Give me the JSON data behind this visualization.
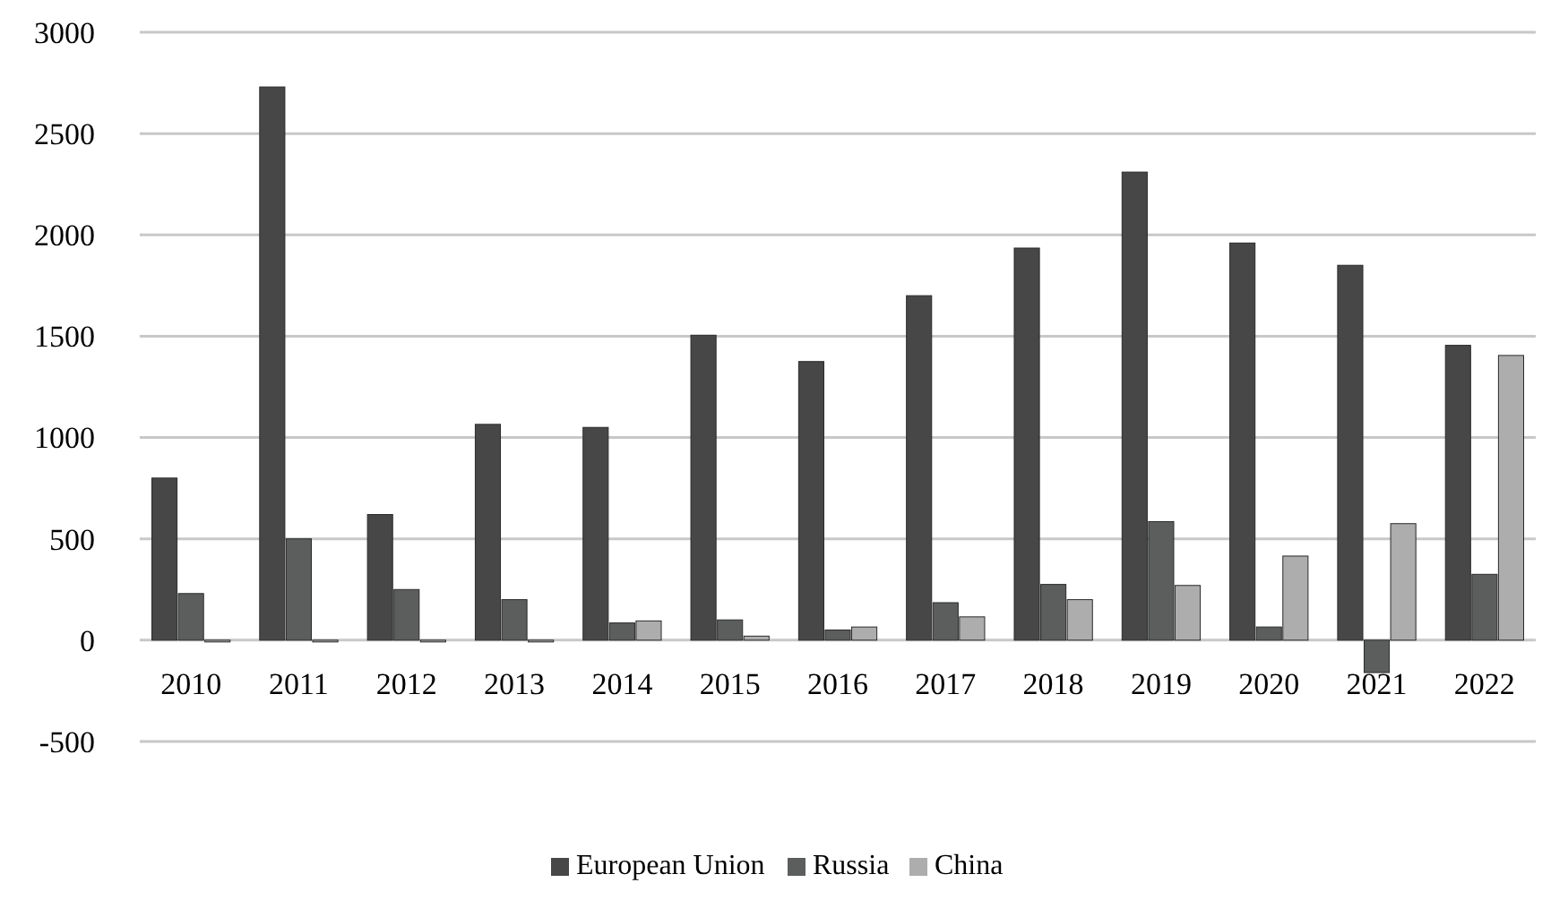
{
  "chart_data": {
    "type": "bar",
    "categories": [
      "2010",
      "2011",
      "2012",
      "2013",
      "2014",
      "2015",
      "2016",
      "2017",
      "2018",
      "2019",
      "2020",
      "2021",
      "2022"
    ],
    "series": [
      {
        "name": "European Union",
        "color": "#474747",
        "values": [
          800,
          2730,
          620,
          1065,
          1050,
          1505,
          1375,
          1700,
          1935,
          2310,
          1960,
          1850,
          1455
        ]
      },
      {
        "name": "Russia",
        "color": "#5c5e5e",
        "values": [
          230,
          500,
          250,
          200,
          85,
          100,
          50,
          185,
          275,
          585,
          65,
          -160,
          325
        ]
      },
      {
        "name": "China",
        "color": "#adadad",
        "values": [
          0,
          0,
          0,
          0,
          95,
          20,
          65,
          115,
          200,
          270,
          415,
          575,
          1405
        ]
      }
    ],
    "ylim": [
      -500,
      3000
    ],
    "yticks": [
      -500,
      0,
      500,
      1000,
      1500,
      2000,
      2500,
      3000
    ],
    "grid": "y",
    "legend": "bottom"
  }
}
